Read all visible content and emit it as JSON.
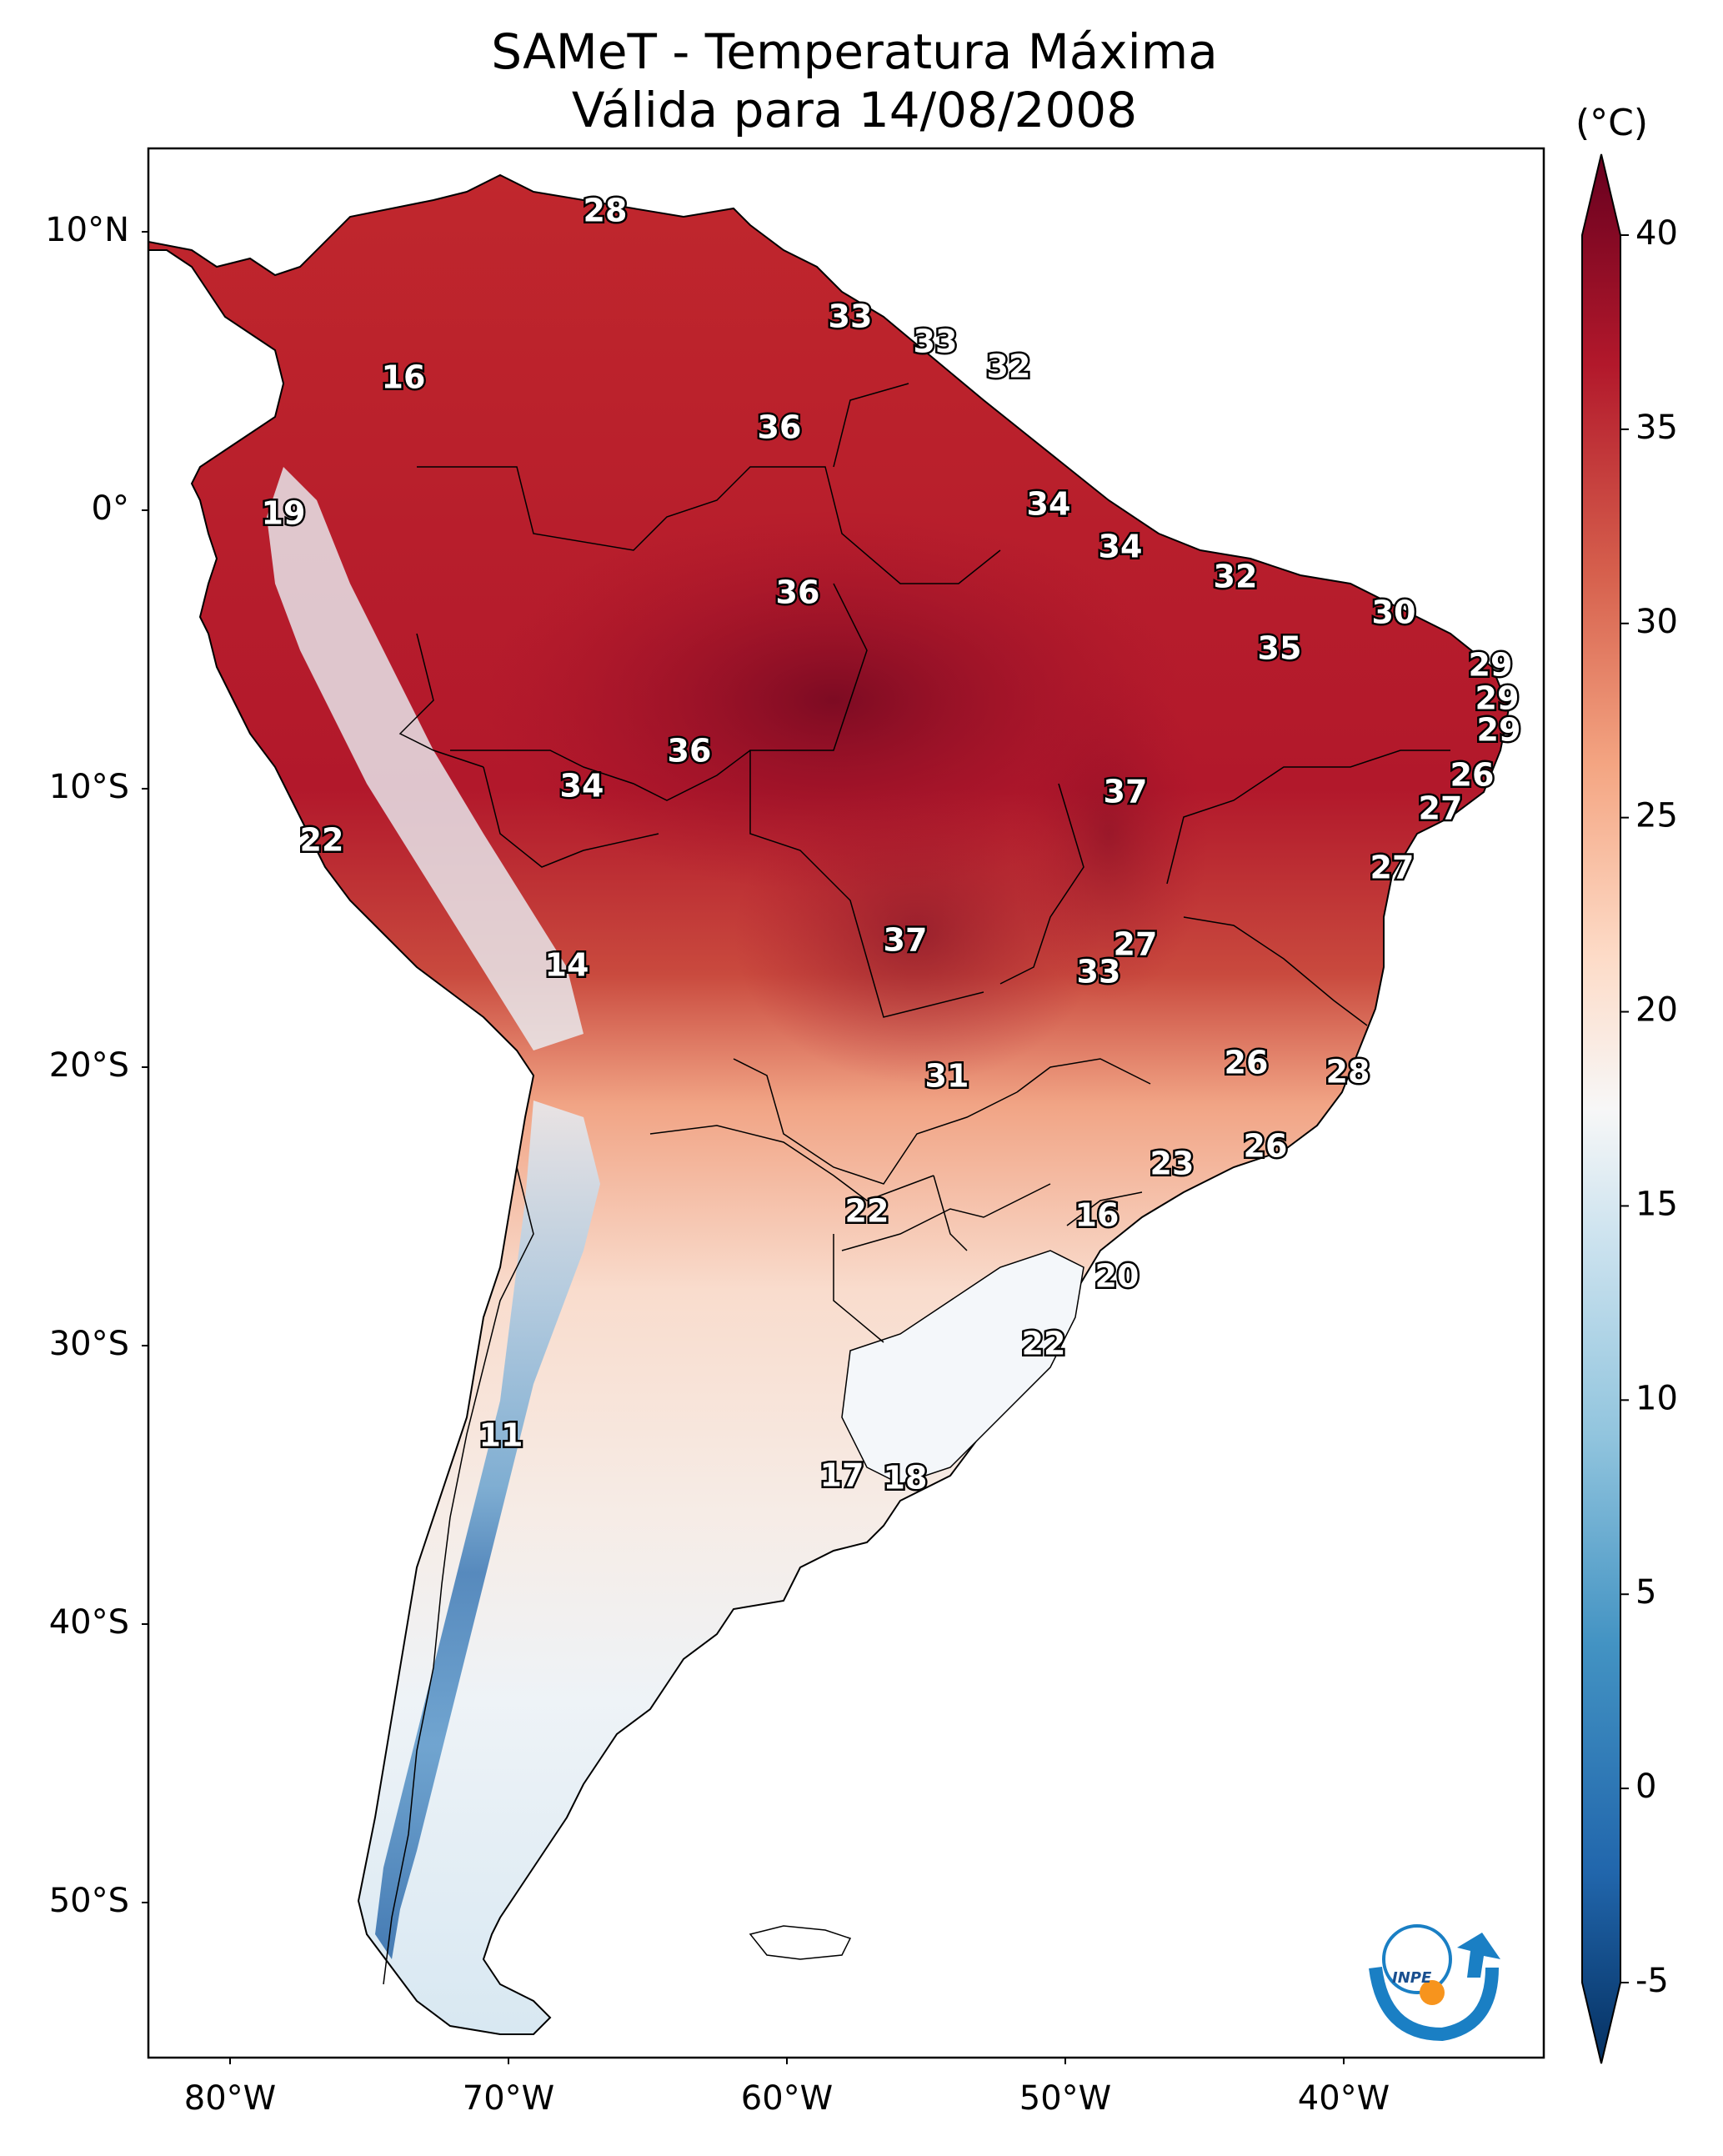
{
  "title": {
    "line1": "SAMeT - Temperatura Máxima",
    "line2": "Válida para 14/08/2008"
  },
  "axes": {
    "lat_labels": [
      "10°N",
      "0°",
      "10°S",
      "20°S",
      "30°S",
      "40°S",
      "50°S"
    ],
    "lon_labels": [
      "80°W",
      "70°W",
      "60°W",
      "50°W",
      "40°W"
    ]
  },
  "colorbar": {
    "unit": "(°C)",
    "ticks": [
      "40",
      "35",
      "30",
      "25",
      "20",
      "15",
      "10",
      "5",
      "0",
      "-5"
    ],
    "range": [
      -5,
      40
    ],
    "colormap": "RdBu_r",
    "colors": {
      "cold": "#053061",
      "mid": "#f7f7f7",
      "hot": "#67001f"
    }
  },
  "station_values": [
    {
      "v": "28"
    },
    {
      "v": "33"
    },
    {
      "v": "33"
    },
    {
      "v": "32"
    },
    {
      "v": "16"
    },
    {
      "v": "36"
    },
    {
      "v": "34"
    },
    {
      "v": "19"
    },
    {
      "v": "34"
    },
    {
      "v": "32"
    },
    {
      "v": "36"
    },
    {
      "v": "30"
    },
    {
      "v": "35"
    },
    {
      "v": "29"
    },
    {
      "v": "29"
    },
    {
      "v": "29"
    },
    {
      "v": "36"
    },
    {
      "v": "26"
    },
    {
      "v": "34"
    },
    {
      "v": "37"
    },
    {
      "v": "27"
    },
    {
      "v": "22"
    },
    {
      "v": "27"
    },
    {
      "v": "27"
    },
    {
      "v": "14"
    },
    {
      "v": "37"
    },
    {
      "v": "33"
    },
    {
      "v": "26"
    },
    {
      "v": "28"
    },
    {
      "v": "31"
    },
    {
      "v": "26"
    },
    {
      "v": "23"
    },
    {
      "v": "22"
    },
    {
      "v": "16"
    },
    {
      "v": "20"
    },
    {
      "v": "22"
    },
    {
      "v": "11"
    },
    {
      "v": "17"
    },
    {
      "v": "18"
    }
  ],
  "logo": {
    "text": "INPE",
    "colors": {
      "blue": "#1a7fc4",
      "orange": "#f7941d"
    }
  }
}
